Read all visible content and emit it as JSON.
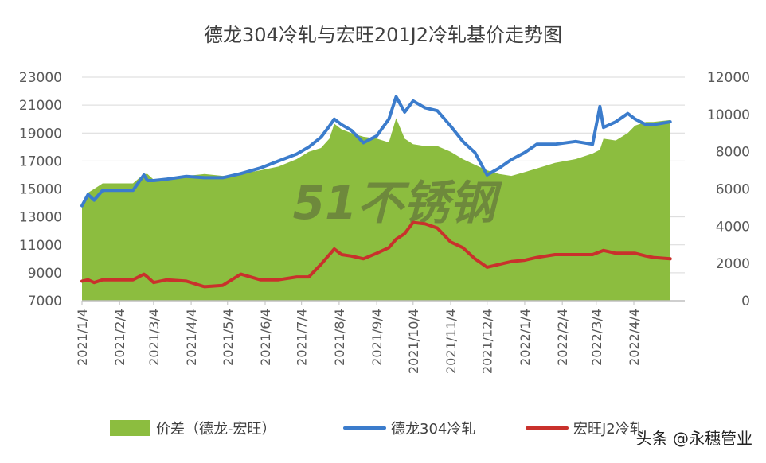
{
  "chart_data": {
    "type": "area",
    "title": "德龙304冷轧与宏旺201J2冷轧基价走势图",
    "left_axis": {
      "ylim": [
        7000,
        23000
      ],
      "ticks": [
        "7000",
        "9000",
        "11000",
        "13000",
        "15000",
        "17000",
        "19000",
        "21000",
        "23000"
      ]
    },
    "right_axis": {
      "ylim": [
        0,
        12000
      ],
      "ticks": [
        "0",
        "2000",
        "4000",
        "6000",
        "8000",
        "10000",
        "12000"
      ]
    },
    "x_axis": {
      "ticks": [
        "2021/1/4",
        "2021/2/4",
        "2021/3/4",
        "2021/4/4",
        "2021/5/4",
        "2021/6/4",
        "2021/7/4",
        "2021/8/4",
        "2021/9/4",
        "2021/10/4",
        "2021/11/4",
        "2021/12/4",
        "2022/1/4",
        "2022/2/4",
        "2022/3/4",
        "2022/4/4"
      ],
      "range_days": [
        0,
        497
      ]
    },
    "grid": "horizontal",
    "legend_position": "bottom",
    "watermark": "51不锈钢",
    "series": [
      {
        "name": "价差（德龙-宏旺）",
        "type": "area",
        "axis": "right",
        "color": "#8cbd3f",
        "x": [
          "2021-01-04",
          "2021-01-09",
          "2021-01-14",
          "2021-01-21",
          "2021-02-01",
          "2021-02-15",
          "2021-02-24",
          "2021-02-27",
          "2021-03-04",
          "2021-03-15",
          "2021-03-31",
          "2021-04-15",
          "2021-04-30",
          "2021-05-15",
          "2021-05-31",
          "2021-06-15",
          "2021-06-30",
          "2021-07-10",
          "2021-07-20",
          "2021-07-27",
          "2021-07-31",
          "2021-08-06",
          "2021-08-14",
          "2021-08-24",
          "2021-09-04",
          "2021-09-14",
          "2021-09-20",
          "2021-09-27",
          "2021-10-04",
          "2021-10-14",
          "2021-10-24",
          "2021-11-04",
          "2021-11-14",
          "2021-11-24",
          "2021-12-04",
          "2021-12-14",
          "2021-12-24",
          "2022-01-04",
          "2022-01-14",
          "2022-01-29",
          "2022-02-15",
          "2022-03-01",
          "2022-03-07",
          "2022-03-10",
          "2022-03-20",
          "2022-03-30",
          "2022-04-05",
          "2022-04-14",
          "2022-04-20",
          "2022-05-04"
        ],
        "values": [
          5100,
          5800,
          6000,
          6300,
          6300,
          6300,
          6800,
          6800,
          6500,
          6600,
          6700,
          6800,
          6700,
          6800,
          7000,
          7200,
          7600,
          8000,
          8200,
          8700,
          9500,
          9200,
          9000,
          8800,
          8700,
          8500,
          9800,
          8700,
          8400,
          8300,
          8300,
          8000,
          7600,
          7300,
          7000,
          6800,
          6700,
          6900,
          7100,
          7400,
          7600,
          7900,
          8100,
          8700,
          8600,
          9000,
          9400,
          9600,
          9600,
          9700
        ]
      },
      {
        "name": "德龙304冷轧",
        "type": "line",
        "axis": "left",
        "color": "#3b7ccc",
        "x": [
          "2021-01-04",
          "2021-01-09",
          "2021-01-14",
          "2021-01-21",
          "2021-02-01",
          "2021-02-15",
          "2021-02-24",
          "2021-02-27",
          "2021-03-04",
          "2021-03-15",
          "2021-03-31",
          "2021-04-15",
          "2021-04-30",
          "2021-05-15",
          "2021-05-31",
          "2021-06-15",
          "2021-06-30",
          "2021-07-10",
          "2021-07-20",
          "2021-07-27",
          "2021-07-31",
          "2021-08-06",
          "2021-08-14",
          "2021-08-24",
          "2021-09-04",
          "2021-09-14",
          "2021-09-20",
          "2021-09-27",
          "2021-10-04",
          "2021-10-14",
          "2021-10-24",
          "2021-11-04",
          "2021-11-14",
          "2021-11-24",
          "2021-12-04",
          "2021-12-14",
          "2021-12-24",
          "2022-01-04",
          "2022-01-14",
          "2022-01-29",
          "2022-02-15",
          "2022-03-01",
          "2022-03-07",
          "2022-03-10",
          "2022-03-20",
          "2022-03-30",
          "2022-04-05",
          "2022-04-14",
          "2022-04-20",
          "2022-05-04"
        ],
        "values": [
          13800,
          14600,
          14200,
          14900,
          14900,
          14900,
          16000,
          15600,
          15600,
          15700,
          15900,
          15800,
          15800,
          16100,
          16500,
          17000,
          17500,
          18000,
          18700,
          19500,
          20000,
          19600,
          19200,
          18300,
          18800,
          20000,
          21600,
          20500,
          21300,
          20800,
          20600,
          19500,
          18400,
          17600,
          16000,
          16500,
          17100,
          17600,
          18200,
          18200,
          18400,
          18200,
          20900,
          19400,
          19800,
          20400,
          20000,
          19600,
          19600,
          19800
        ]
      },
      {
        "name": "宏旺J2冷轧",
        "type": "line",
        "axis": "left",
        "color": "#c9312c",
        "x": [
          "2021-01-04",
          "2021-01-09",
          "2021-01-14",
          "2021-01-21",
          "2021-02-01",
          "2021-02-15",
          "2021-02-24",
          "2021-02-27",
          "2021-03-04",
          "2021-03-15",
          "2021-03-31",
          "2021-04-15",
          "2021-04-30",
          "2021-05-15",
          "2021-05-31",
          "2021-06-15",
          "2021-06-30",
          "2021-07-10",
          "2021-07-20",
          "2021-07-27",
          "2021-07-31",
          "2021-08-06",
          "2021-08-14",
          "2021-08-24",
          "2021-09-04",
          "2021-09-14",
          "2021-09-20",
          "2021-09-27",
          "2021-10-04",
          "2021-10-14",
          "2021-10-24",
          "2021-11-04",
          "2021-11-14",
          "2021-11-24",
          "2021-12-04",
          "2021-12-14",
          "2021-12-24",
          "2022-01-04",
          "2022-01-14",
          "2022-01-29",
          "2022-02-15",
          "2022-03-01",
          "2022-03-07",
          "2022-03-10",
          "2022-03-20",
          "2022-03-30",
          "2022-04-05",
          "2022-04-14",
          "2022-04-20",
          "2022-05-04"
        ],
        "values": [
          8400,
          8500,
          8300,
          8500,
          8500,
          8500,
          8900,
          8700,
          8300,
          8500,
          8400,
          8000,
          8100,
          8900,
          8500,
          8500,
          8700,
          8700,
          9600,
          10300,
          10700,
          10300,
          10200,
          10000,
          10400,
          10800,
          11400,
          11800,
          12600,
          12500,
          12200,
          11200,
          10800,
          10000,
          9400,
          9600,
          9800,
          9900,
          10100,
          10300,
          10300,
          10300,
          10500,
          10600,
          10400,
          10400,
          10400,
          10200,
          10100,
          10000
        ]
      }
    ]
  },
  "source_label": "头条 @永穗管业"
}
